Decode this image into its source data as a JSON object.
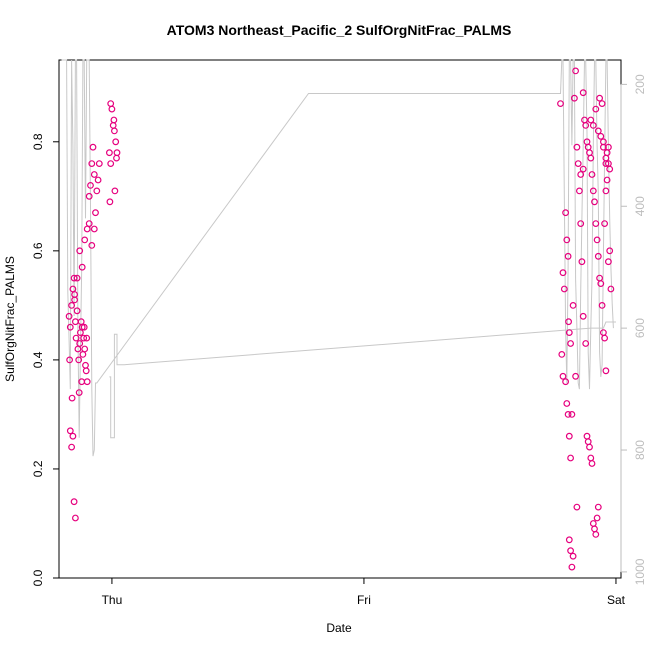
{
  "chart_data": {
    "type": "scatter",
    "title": "ATOM3 Northeast_Pacific_2 SulfOrgNitFrac_PALMS",
    "xlabel": "Date",
    "ylabel": "SulfOrgNitFrac_PALMS",
    "ylim": [
      0.0,
      0.95
    ],
    "yticks": [
      0.0,
      0.2,
      0.4,
      0.6,
      0.8
    ],
    "ytick_labels": [
      "0.0",
      "0.2",
      "0.4",
      "0.6",
      "0.8"
    ],
    "x_unit": "days since Thu 00:00 (data time)",
    "xlim": [
      -0.21,
      2.02
    ],
    "xticks": [
      0,
      1,
      2
    ],
    "xtick_labels": [
      "Thu",
      "Fri",
      "Sat"
    ],
    "right_axis": {
      "ylim": [
        1010,
        160
      ],
      "ticks": [
        200,
        400,
        600,
        800,
        1000
      ],
      "tick_labels": [
        "200",
        "400",
        "600",
        "800",
        "1000"
      ],
      "color": "#bdbdbd"
    },
    "point_color": "#e6007e",
    "line_color": "#c8c8c8",
    "grid": false,
    "series": [
      {
        "values": [
          [
            -0.17,
            0.48
          ],
          [
            -0.165,
            0.46
          ],
          [
            -0.16,
            0.5
          ],
          [
            -0.155,
            0.53
          ],
          [
            -0.15,
            0.55
          ],
          [
            -0.148,
            0.51
          ],
          [
            -0.145,
            0.47
          ],
          [
            -0.142,
            0.44
          ],
          [
            -0.138,
            0.49
          ],
          [
            -0.135,
            0.42
          ],
          [
            -0.132,
            0.4
          ],
          [
            -0.128,
            0.43
          ],
          [
            -0.125,
            0.45
          ],
          [
            -0.122,
            0.47
          ],
          [
            -0.118,
            0.46
          ],
          [
            -0.115,
            0.41
          ],
          [
            -0.112,
            0.44
          ],
          [
            -0.108,
            0.42
          ],
          [
            -0.105,
            0.39
          ],
          [
            -0.102,
            0.38
          ],
          [
            -0.098,
            0.36
          ],
          [
            -0.165,
            0.27
          ],
          [
            -0.16,
            0.24
          ],
          [
            -0.155,
            0.26
          ],
          [
            -0.15,
            0.14
          ],
          [
            -0.145,
            0.11
          ],
          [
            -0.168,
            0.4
          ],
          [
            -0.158,
            0.33
          ],
          [
            -0.148,
            0.52
          ],
          [
            -0.138,
            0.55
          ],
          [
            -0.128,
            0.6
          ],
          [
            -0.118,
            0.57
          ],
          [
            -0.108,
            0.62
          ],
          [
            -0.098,
            0.64
          ],
          [
            -0.09,
            0.7
          ],
          [
            -0.085,
            0.72
          ],
          [
            -0.08,
            0.76
          ],
          [
            -0.075,
            0.79
          ],
          [
            -0.07,
            0.74
          ],
          [
            -0.065,
            0.67
          ],
          [
            -0.06,
            0.71
          ],
          [
            -0.055,
            0.73
          ],
          [
            -0.05,
            0.76
          ],
          [
            -0.09,
            0.65
          ],
          [
            -0.08,
            0.61
          ],
          [
            -0.07,
            0.64
          ],
          [
            -0.1,
            0.44
          ],
          [
            -0.11,
            0.46
          ],
          [
            -0.12,
            0.36
          ],
          [
            -0.13,
            0.34
          ]
        ]
      },
      {
        "values": [
          [
            -0.005,
            0.87
          ],
          [
            0.0,
            0.86
          ],
          [
            0.005,
            0.83
          ],
          [
            0.01,
            0.82
          ],
          [
            0.015,
            0.8
          ],
          [
            0.02,
            0.78
          ],
          [
            -0.01,
            0.78
          ],
          [
            -0.005,
            0.76
          ],
          [
            0.012,
            0.71
          ],
          [
            -0.008,
            0.69
          ],
          [
            0.008,
            0.84
          ],
          [
            0.018,
            0.77
          ]
        ]
      },
      {
        "values": [
          [
            1.78,
            0.87
          ],
          [
            1.79,
            0.56
          ],
          [
            1.795,
            0.53
          ],
          [
            1.8,
            0.67
          ],
          [
            1.805,
            0.62
          ],
          [
            1.81,
            0.59
          ],
          [
            1.812,
            0.47
          ],
          [
            1.815,
            0.45
          ],
          [
            1.82,
            0.43
          ],
          [
            1.785,
            0.41
          ],
          [
            1.79,
            0.37
          ],
          [
            1.8,
            0.36
          ],
          [
            1.805,
            0.32
          ],
          [
            1.81,
            0.3
          ],
          [
            1.815,
            0.26
          ],
          [
            1.82,
            0.22
          ],
          [
            1.825,
            0.3
          ],
          [
            1.83,
            0.5
          ],
          [
            1.835,
            0.88
          ],
          [
            1.84,
            0.93
          ],
          [
            1.845,
            0.79
          ],
          [
            1.85,
            0.76
          ],
          [
            1.855,
            0.71
          ],
          [
            1.86,
            0.65
          ],
          [
            1.865,
            0.58
          ],
          [
            1.87,
            0.48
          ],
          [
            1.84,
            0.37
          ],
          [
            1.845,
            0.13
          ],
          [
            1.815,
            0.07
          ],
          [
            1.82,
            0.05
          ],
          [
            1.825,
            0.02
          ],
          [
            1.83,
            0.04
          ],
          [
            1.87,
            0.89
          ],
          [
            1.875,
            0.84
          ],
          [
            1.88,
            0.83
          ],
          [
            1.885,
            0.8
          ],
          [
            1.89,
            0.79
          ],
          [
            1.895,
            0.78
          ],
          [
            1.9,
            0.77
          ],
          [
            1.905,
            0.74
          ],
          [
            1.91,
            0.71
          ],
          [
            1.915,
            0.69
          ],
          [
            1.92,
            0.65
          ],
          [
            1.925,
            0.62
          ],
          [
            1.93,
            0.59
          ],
          [
            1.935,
            0.55
          ],
          [
            1.94,
            0.54
          ],
          [
            1.945,
            0.5
          ],
          [
            1.95,
            0.45
          ],
          [
            1.955,
            0.44
          ],
          [
            1.96,
            0.38
          ],
          [
            1.88,
            0.43
          ],
          [
            1.885,
            0.26
          ],
          [
            1.89,
            0.25
          ],
          [
            1.895,
            0.24
          ],
          [
            1.9,
            0.22
          ],
          [
            1.905,
            0.21
          ],
          [
            1.91,
            0.1
          ],
          [
            1.915,
            0.09
          ],
          [
            1.92,
            0.08
          ],
          [
            1.925,
            0.11
          ],
          [
            1.93,
            0.13
          ],
          [
            1.9,
            0.84
          ],
          [
            1.91,
            0.83
          ],
          [
            1.92,
            0.86
          ],
          [
            1.93,
            0.82
          ],
          [
            1.94,
            0.81
          ],
          [
            1.95,
            0.8
          ],
          [
            1.96,
            0.76
          ],
          [
            1.97,
            0.76
          ],
          [
            1.965,
            0.73
          ],
          [
            1.96,
            0.71
          ],
          [
            1.955,
            0.65
          ],
          [
            1.975,
            0.6
          ],
          [
            1.97,
            0.58
          ],
          [
            1.98,
            0.53
          ],
          [
            1.86,
            0.74
          ],
          [
            1.87,
            0.75
          ],
          [
            1.935,
            0.88
          ],
          [
            1.945,
            0.87
          ],
          [
            1.95,
            0.79
          ],
          [
            1.96,
            0.77
          ],
          [
            1.965,
            0.78
          ],
          [
            1.97,
            0.79
          ],
          [
            1.975,
            0.75
          ]
        ]
      }
    ],
    "altitude_line": [
      [
        -0.2,
        160
      ],
      [
        -0.18,
        160
      ],
      [
        -0.175,
        540
      ],
      [
        -0.17,
        620
      ],
      [
        -0.165,
        700
      ],
      [
        -0.16,
        160
      ],
      [
        -0.155,
        300
      ],
      [
        -0.15,
        580
      ],
      [
        -0.145,
        160
      ],
      [
        -0.14,
        160
      ],
      [
        -0.135,
        600
      ],
      [
        -0.13,
        780
      ],
      [
        -0.125,
        640
      ],
      [
        -0.12,
        500
      ],
      [
        -0.115,
        160
      ],
      [
        -0.11,
        160
      ],
      [
        -0.105,
        420
      ],
      [
        -0.1,
        160
      ],
      [
        -0.095,
        160
      ],
      [
        -0.09,
        160
      ],
      [
        -0.085,
        400
      ],
      [
        -0.08,
        700
      ],
      [
        -0.075,
        810
      ],
      [
        -0.07,
        800
      ],
      [
        -0.065,
        690
      ],
      [
        -0.06,
        690
      ],
      [
        0.78,
        215
      ],
      [
        1.78,
        215
      ],
      [
        1.785,
        160
      ],
      [
        1.79,
        160
      ],
      [
        1.8,
        600
      ],
      [
        1.805,
        690
      ],
      [
        1.81,
        500
      ],
      [
        1.815,
        160
      ],
      [
        1.82,
        160
      ],
      [
        1.825,
        300
      ],
      [
        1.83,
        160
      ],
      [
        1.835,
        160
      ],
      [
        1.84,
        520
      ],
      [
        1.845,
        600
      ],
      [
        1.85,
        690
      ],
      [
        1.855,
        700
      ],
      [
        1.86,
        540
      ],
      [
        1.865,
        420
      ],
      [
        1.87,
        300
      ],
      [
        1.875,
        160
      ],
      [
        1.88,
        160
      ],
      [
        1.885,
        280
      ],
      [
        1.89,
        640
      ],
      [
        1.895,
        700
      ],
      [
        1.9,
        600
      ],
      [
        1.905,
        520
      ],
      [
        1.91,
        300
      ],
      [
        1.915,
        160
      ],
      [
        1.92,
        160
      ],
      [
        1.925,
        300
      ],
      [
        1.93,
        380
      ],
      [
        1.935,
        640
      ],
      [
        1.94,
        680
      ],
      [
        1.945,
        660
      ],
      [
        1.95,
        480
      ],
      [
        1.955,
        320
      ],
      [
        1.96,
        160
      ],
      [
        1.965,
        160
      ],
      [
        1.97,
        300
      ],
      [
        1.975,
        420
      ],
      [
        1.98,
        500
      ],
      [
        1.985,
        560
      ],
      [
        1.99,
        600
      ]
    ],
    "altitude_line_2": [
      [
        -0.01,
        680
      ],
      [
        -0.005,
        680
      ],
      [
        -0.005,
        780
      ],
      [
        0.01,
        780
      ],
      [
        0.01,
        610
      ],
      [
        0.02,
        610
      ],
      [
        0.02,
        660
      ],
      [
        0.03,
        660
      ],
      [
        0.04,
        660
      ],
      [
        0.05,
        660
      ],
      [
        1.9,
        600
      ],
      [
        1.95,
        600
      ],
      [
        1.96,
        590
      ],
      [
        1.99,
        590
      ],
      [
        2.0,
        590
      ]
    ]
  }
}
